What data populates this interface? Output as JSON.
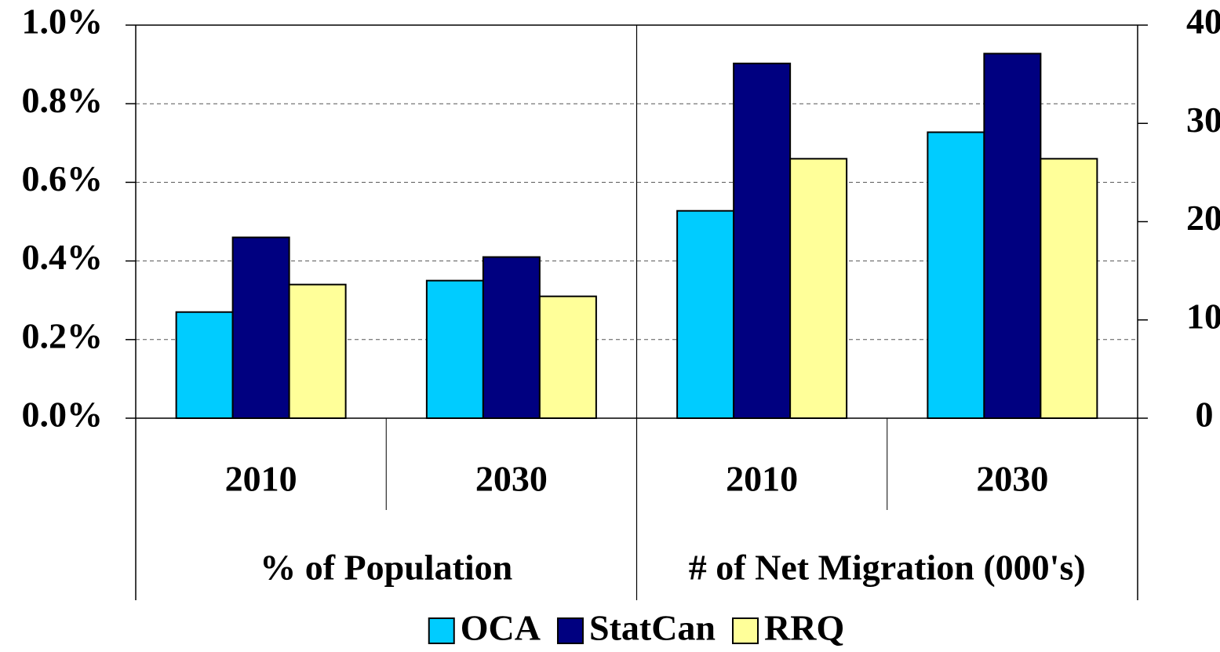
{
  "chart_data": [
    {
      "type": "bar",
      "xlabel": "% of Population",
      "categories": [
        "2010",
        "2030"
      ],
      "series": [
        {
          "name": "OCA",
          "color": "#00ccff",
          "values": [
            0.27,
            0.35
          ]
        },
        {
          "name": "StatCan",
          "color": "#000080",
          "values": [
            0.46,
            0.41
          ]
        },
        {
          "name": "RRQ",
          "color": "#ffff99",
          "values": [
            0.34,
            0.31
          ]
        }
      ],
      "ylim": [
        0,
        1
      ],
      "yticks": [
        {
          "value": 0,
          "label": "0.0%"
        },
        {
          "value": 0.2,
          "label": "0.2%"
        },
        {
          "value": 0.4,
          "label": "0.4%"
        },
        {
          "value": 0.6,
          "label": "0.6%"
        },
        {
          "value": 0.8,
          "label": "0.8%"
        },
        {
          "value": 1,
          "label": "1.0%"
        }
      ],
      "grid": true,
      "legend": "bottom"
    },
    {
      "type": "bar",
      "xlabel": "# of Net Migration (000's)",
      "categories": [
        "2010",
        "2030"
      ],
      "series": [
        {
          "color": "#00ccff",
          "axis": "y2",
          "values": [
            21.1,
            29.1
          ]
        },
        {
          "color": "#000080",
          "axis": "y2",
          "values": [
            36.1,
            37.1
          ]
        },
        {
          "color": "#ffff99",
          "axis": "y2",
          "values": [
            26.4,
            26.4
          ]
        }
      ],
      "y2lim": [
        0,
        40
      ],
      "y2ticks": [
        0,
        10,
        20,
        30,
        40
      ]
    }
  ]
}
